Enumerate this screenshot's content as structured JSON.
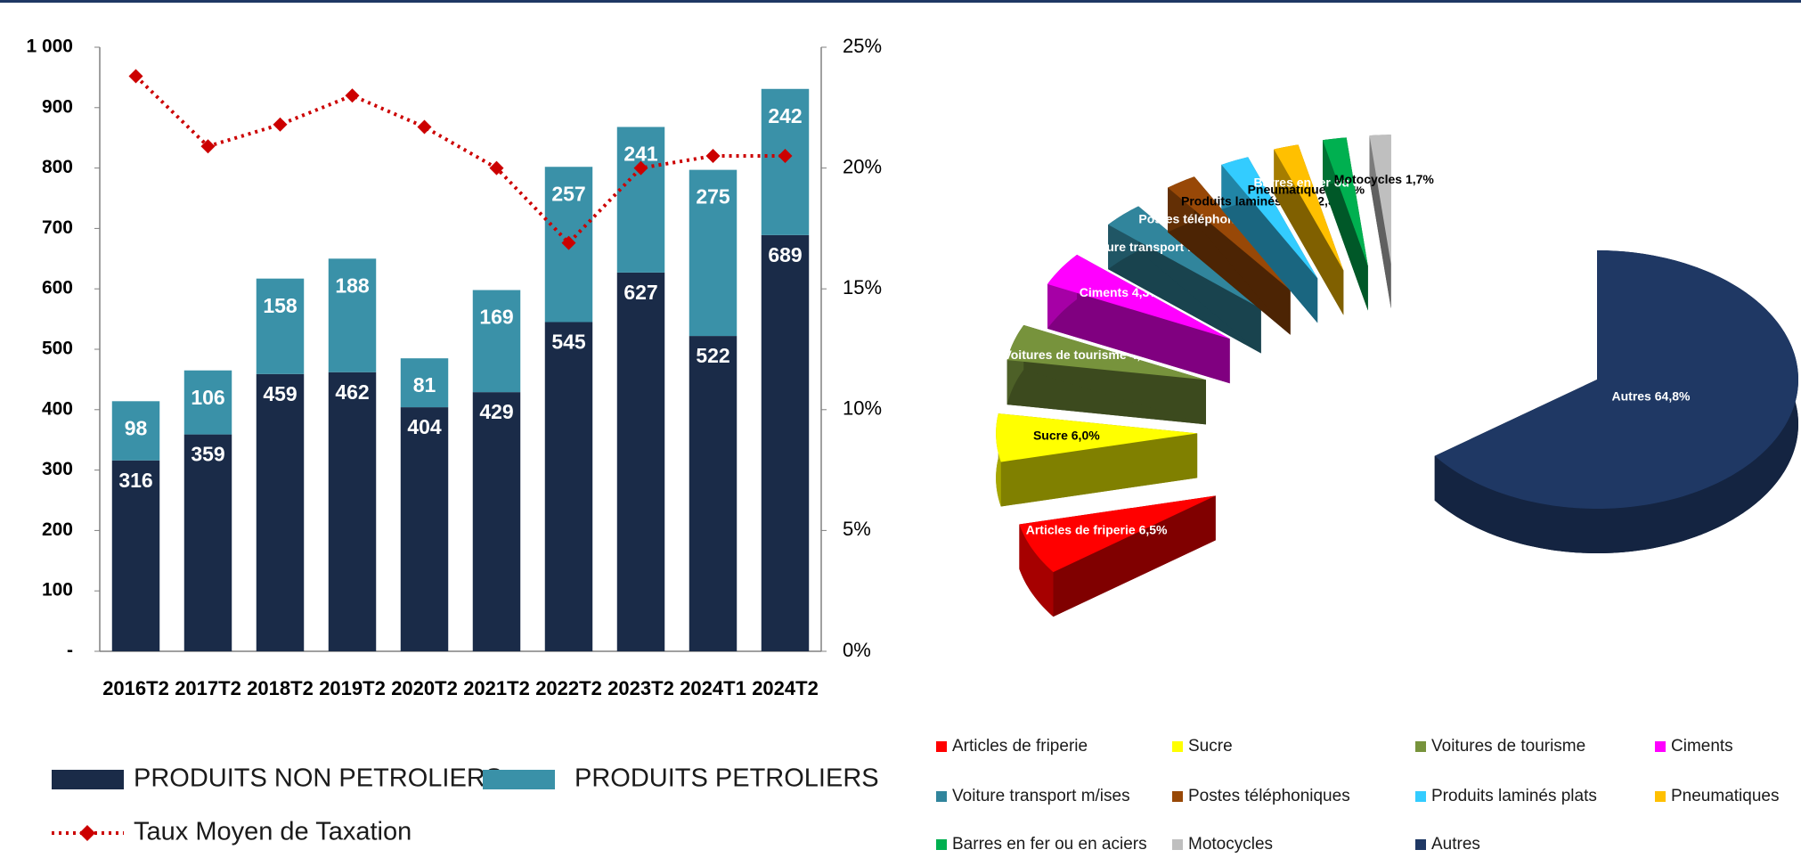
{
  "chart_data": [
    {
      "type": "bar",
      "categories": [
        "2016T2",
        "2017T2",
        "2018T2",
        "2019T2",
        "2020T2",
        "2021T2",
        "2022T2",
        "2023T2",
        "2024T1",
        "2024T2"
      ],
      "series": [
        {
          "name": "PRODUITS NON PETROLIERS",
          "color": "#1a2b48",
          "values": [
            316,
            359,
            459,
            462,
            404,
            429,
            545,
            627,
            522,
            689
          ]
        },
        {
          "name": "PRODUITS PETROLIERS",
          "color": "#3a91a8",
          "values": [
            98,
            106,
            158,
            188,
            81,
            169,
            257,
            241,
            275,
            242
          ]
        },
        {
          "name": "Taux Moyen de Taxation",
          "color": "#cc0000",
          "type": "line",
          "axis": "y2",
          "values": [
            23.8,
            20.9,
            21.8,
            23.0,
            21.7,
            20.0,
            16.9,
            20.0,
            20.5,
            20.5
          ]
        }
      ],
      "ylim": [
        0,
        1000
      ],
      "yticks": [
        {
          "value": 0,
          "label": "-"
        },
        100,
        200,
        300,
        400,
        500,
        600,
        700,
        800,
        900,
        {
          "value": 1000,
          "label": "1 000"
        }
      ],
      "y2lim": [
        0,
        25
      ],
      "y2ticks": [
        {
          "value": 0,
          "label": "0%"
        },
        {
          "value": 5,
          "label": "5%"
        },
        {
          "value": 10,
          "label": "10%"
        },
        {
          "value": 15,
          "label": "15%"
        },
        {
          "value": 20,
          "label": "20%"
        },
        {
          "value": 25,
          "label": "25%"
        }
      ],
      "grid": false,
      "legend": "bottom"
    },
    {
      "type": "pie",
      "categories": [
        "Articles de friperie",
        "Sucre",
        "Voitures de tourisme",
        "Ciments",
        "Voiture transport m/ises",
        "Postes téléphoniques",
        "Produits laminés plats",
        "Pneumatiques",
        "Barres en fer ou en aciers",
        "Motocycles",
        "Autres"
      ],
      "values": [
        6.5,
        6.0,
        4.5,
        4.3,
        3.3,
        2.5,
        2.3,
        2.0,
        1.9,
        1.7,
        64.8
      ],
      "value_labels": [
        "6,5%",
        "6,0%",
        "4,5%",
        "4,3%",
        "3,3%",
        "2,5%",
        "2,3%",
        "2,0%",
        "1,9%",
        "1,7%",
        "64,8%"
      ],
      "colors": [
        "#ff0000",
        "#ffff00",
        "#77933c",
        "#ff00ff",
        "#31859c",
        "#984807",
        "#33ccff",
        "#ffc000",
        "#00b050",
        "#bfbfbf",
        "#1f3864"
      ],
      "legend": "bottom"
    }
  ]
}
